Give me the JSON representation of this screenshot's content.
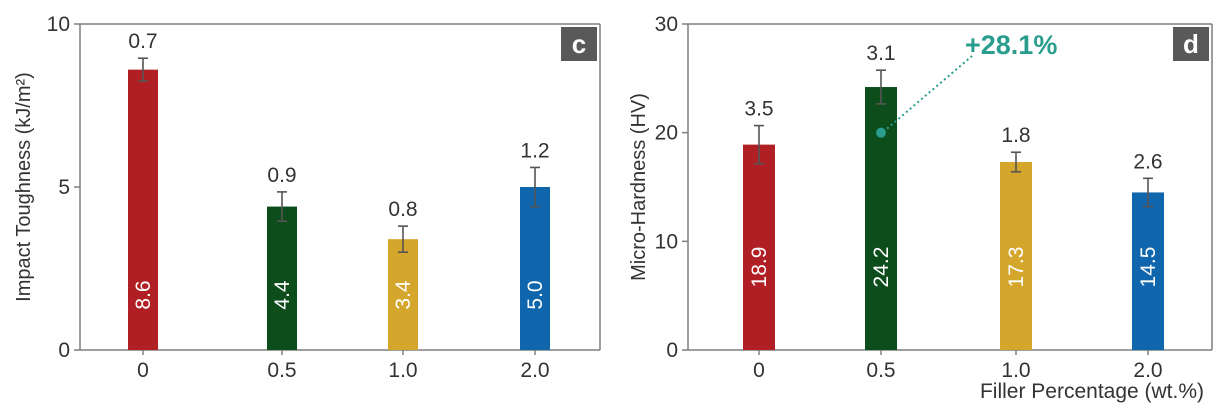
{
  "colors": {
    "bar_colors": [
      "#b01f24",
      "#0d4d1c",
      "#d4a72c",
      "#0f66ac"
    ],
    "error_bar": "#555555",
    "panel_badge": "#595959",
    "annotation": "#2a9d8f"
  },
  "chart_data": [
    {
      "type": "bar",
      "panel_label": "c",
      "categories": [
        "0",
        "0.5",
        "1.0",
        "2.0"
      ],
      "values": [
        8.6,
        4.4,
        3.4,
        5.0
      ],
      "value_labels": [
        "8.6",
        "4.4",
        "3.4",
        "5.0"
      ],
      "errors": [
        0.7,
        0.9,
        0.8,
        1.2
      ],
      "error_labels": [
        "0.7",
        "0.9",
        "0.8",
        "1.2"
      ],
      "xlabel": "",
      "ylabel": "Impact Toughness (kJ/m²)",
      "ylim": [
        0,
        10
      ],
      "yticks": [
        "0",
        "5",
        "10"
      ],
      "ytick_values": [
        0,
        5,
        10
      ]
    },
    {
      "type": "bar",
      "panel_label": "d",
      "categories": [
        "0",
        "0.5",
        "1.0",
        "2.0"
      ],
      "values": [
        18.9,
        24.2,
        17.3,
        14.5
      ],
      "value_labels": [
        "18.9",
        "24.2",
        "17.3",
        "14.5"
      ],
      "errors": [
        3.5,
        3.1,
        1.8,
        2.6
      ],
      "error_labels": [
        "3.5",
        "3.1",
        "1.8",
        "2.6"
      ],
      "xlabel": "Filler Percentage (wt.%)",
      "ylabel": "Micro-Hardness (HV)",
      "ylim": [
        0,
        30
      ],
      "yticks": [
        "0",
        "10",
        "20",
        "30"
      ],
      "ytick_values": [
        0,
        10,
        20,
        30
      ],
      "annotation": {
        "text": "+28.1%",
        "category_index": 1,
        "y": 20
      }
    }
  ],
  "shared_xlabel": "Filler Percentage (wt.%)"
}
